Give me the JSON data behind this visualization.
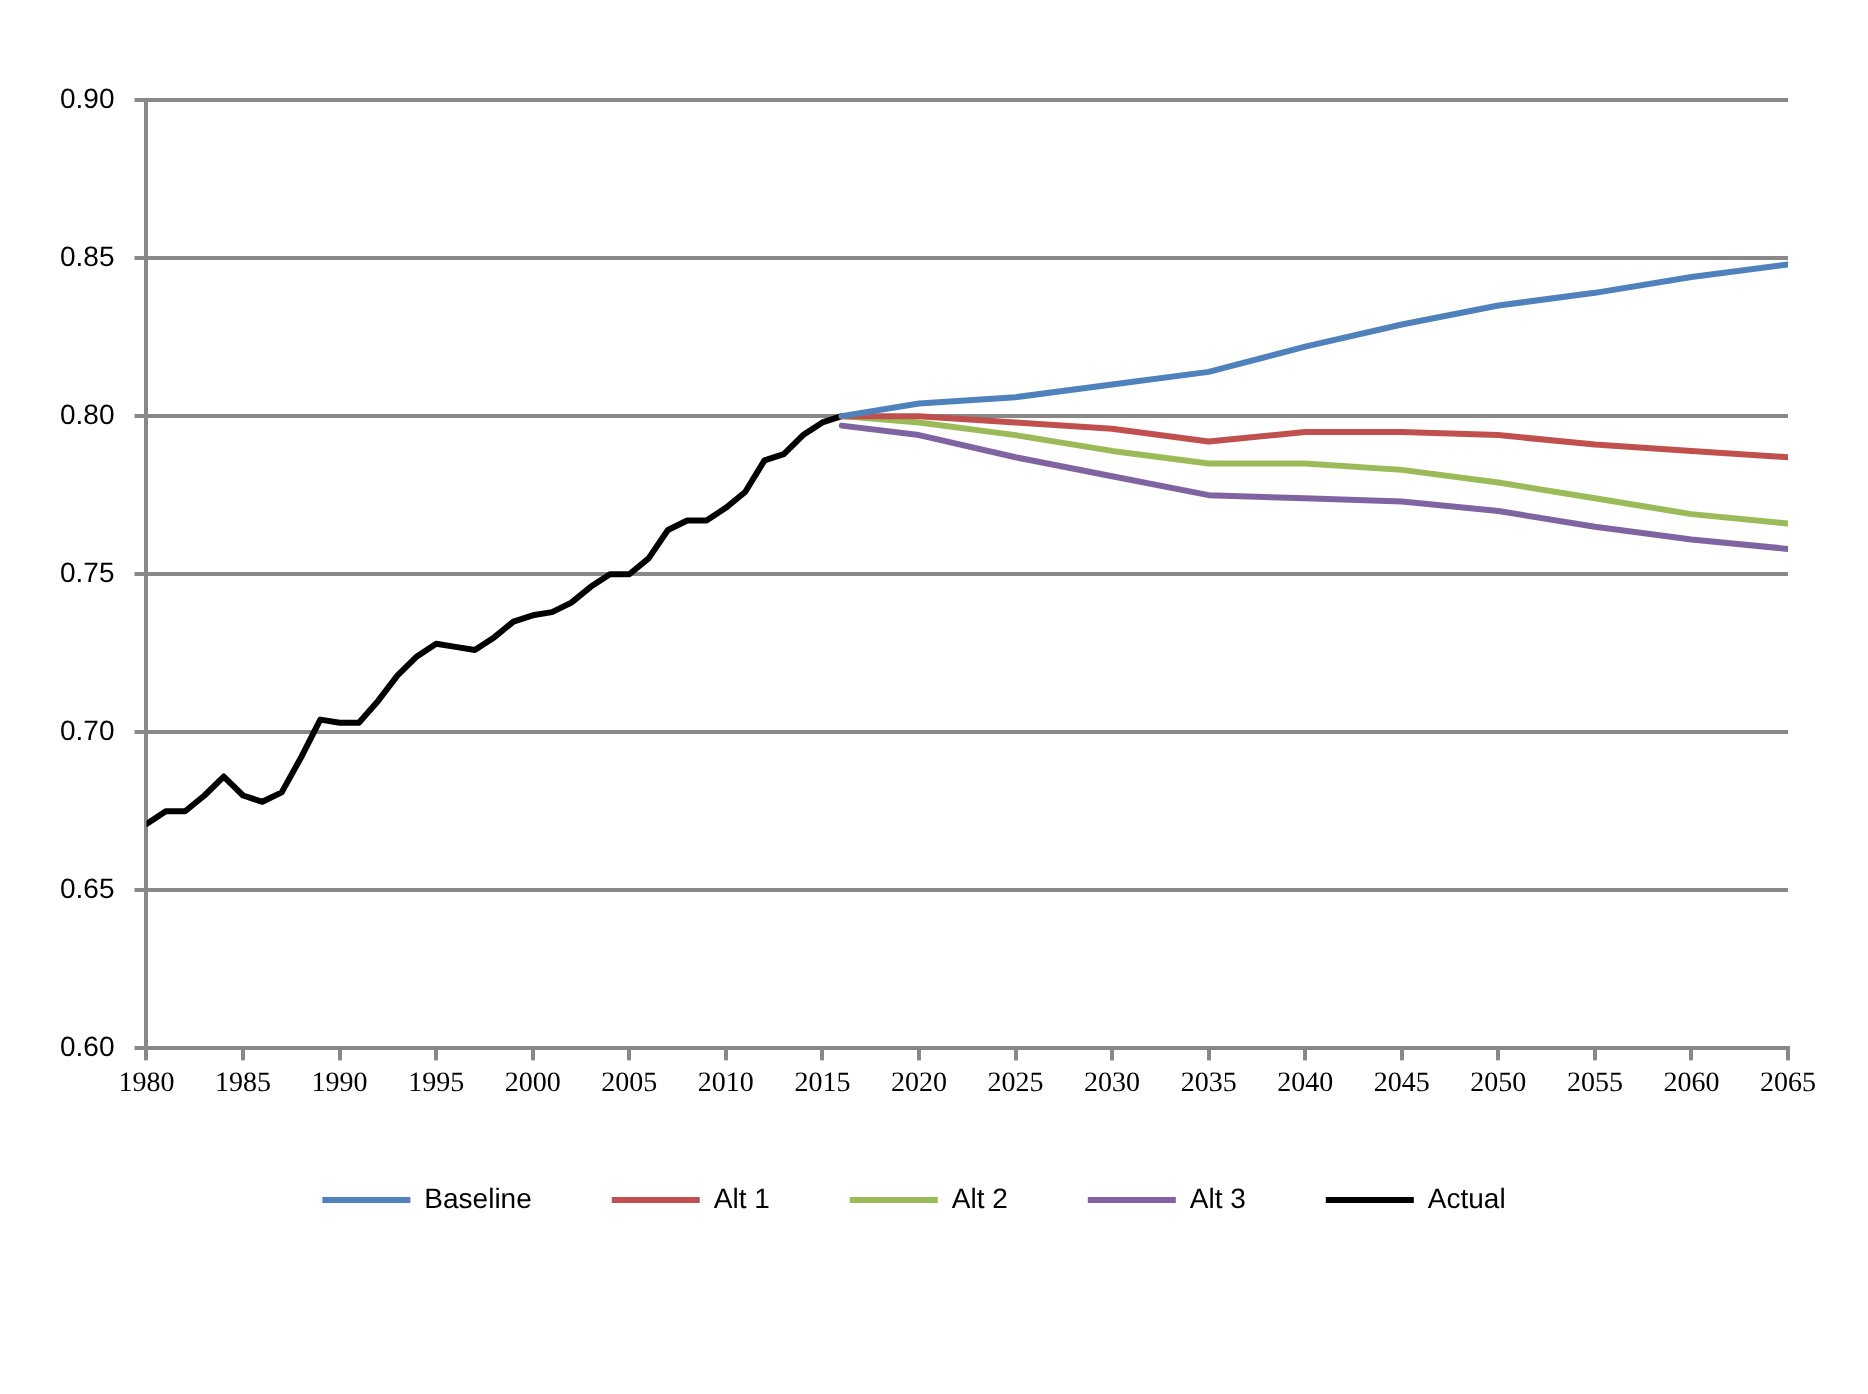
{
  "chart_data": {
    "type": "line",
    "xlim": [
      1980,
      2065
    ],
    "xticks": [
      1980,
      1985,
      1990,
      1995,
      2000,
      2005,
      2010,
      2015,
      2020,
      2025,
      2030,
      2035,
      2040,
      2045,
      2050,
      2055,
      2060,
      2065
    ],
    "ylim": [
      0.6,
      0.9
    ],
    "yticks": [
      {
        "value": 0.6,
        "label": "0.60"
      },
      {
        "value": 0.65,
        "label": "0.65"
      },
      {
        "value": 0.7,
        "label": "0.70"
      },
      {
        "value": 0.75,
        "label": "0.75"
      },
      {
        "value": 0.8,
        "label": "0.80"
      },
      {
        "value": 0.85,
        "label": "0.85"
      },
      {
        "value": 0.9,
        "label": "0.90"
      }
    ],
    "grid": "y",
    "legend": "bottom",
    "marker": "none",
    "line_style": "solid",
    "series": [
      {
        "name": "Baseline",
        "color": "#4f81bd",
        "x": [
          2016,
          2020,
          2025,
          2030,
          2035,
          2040,
          2045,
          2050,
          2055,
          2060,
          2065
        ],
        "values": [
          0.8,
          0.804,
          0.806,
          0.81,
          0.814,
          0.822,
          0.829,
          0.835,
          0.839,
          0.844,
          0.848
        ]
      },
      {
        "name": "Alt 1",
        "color": "#c0504d",
        "x": [
          2016,
          2020,
          2025,
          2030,
          2035,
          2040,
          2045,
          2050,
          2055,
          2060,
          2065
        ],
        "values": [
          0.8,
          0.8,
          0.798,
          0.796,
          0.792,
          0.795,
          0.795,
          0.794,
          0.791,
          0.789,
          0.787
        ]
      },
      {
        "name": "Alt 2",
        "color": "#9bbb59",
        "x": [
          2016,
          2020,
          2025,
          2030,
          2035,
          2040,
          2045,
          2050,
          2055,
          2060,
          2065
        ],
        "values": [
          0.8,
          0.798,
          0.794,
          0.789,
          0.785,
          0.785,
          0.783,
          0.779,
          0.774,
          0.769,
          0.766
        ]
      },
      {
        "name": "Alt 3",
        "color": "#8064a2",
        "x": [
          2016,
          2020,
          2025,
          2030,
          2035,
          2040,
          2045,
          2050,
          2055,
          2060,
          2065
        ],
        "values": [
          0.797,
          0.794,
          0.787,
          0.781,
          0.775,
          0.774,
          0.773,
          0.77,
          0.765,
          0.761,
          0.758
        ]
      },
      {
        "name": "Actual",
        "color": "#000000",
        "x": [
          1980,
          1981,
          1982,
          1983,
          1984,
          1985,
          1986,
          1987,
          1988,
          1989,
          1990,
          1991,
          1992,
          1993,
          1994,
          1995,
          1996,
          1997,
          1998,
          1999,
          2000,
          2001,
          2002,
          2003,
          2004,
          2005,
          2006,
          2007,
          2008,
          2009,
          2010,
          2011,
          2012,
          2013,
          2014,
          2015,
          2016
        ],
        "values": [
          0.671,
          0.675,
          0.675,
          0.68,
          0.686,
          0.68,
          0.678,
          0.681,
          0.692,
          0.704,
          0.703,
          0.703,
          0.71,
          0.718,
          0.724,
          0.728,
          0.727,
          0.726,
          0.73,
          0.735,
          0.737,
          0.738,
          0.741,
          0.746,
          0.75,
          0.75,
          0.755,
          0.764,
          0.767,
          0.767,
          0.771,
          0.776,
          0.786,
          0.788,
          0.794,
          0.798,
          0.8
        ]
      }
    ]
  }
}
